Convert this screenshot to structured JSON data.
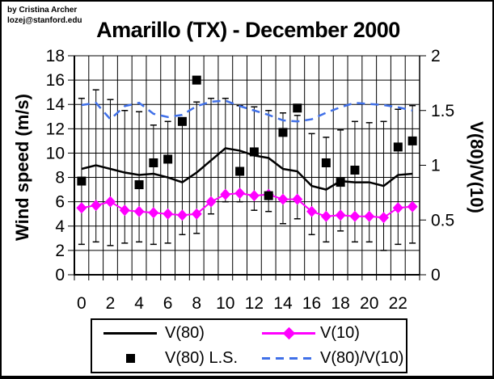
{
  "credit": {
    "line1": "by Cristina Archer",
    "line2": "lozej@stanford.edu"
  },
  "title": "Amarillo (TX) - December 2000",
  "axes": {
    "left": {
      "label": "Wind speed (m/s)",
      "tick_labels": [
        "18",
        "16",
        "14",
        "12",
        "10",
        "8",
        "6",
        "4",
        "2",
        "0"
      ],
      "tick_values": [
        18,
        16,
        14,
        12,
        10,
        8,
        6,
        4,
        2,
        0
      ],
      "range": [
        0,
        18
      ]
    },
    "right": {
      "label": "V(80)/V(10)",
      "tick_labels": [
        "2",
        "1.5",
        "1",
        "0.5",
        "0"
      ],
      "tick_values": [
        2,
        1.5,
        1,
        0.5,
        0
      ],
      "range": [
        0,
        2
      ]
    },
    "x": {
      "tick_labels": [
        "0",
        "2",
        "4",
        "6",
        "8",
        "10",
        "12",
        "14",
        "16",
        "18",
        "20",
        "22"
      ],
      "tick_hours": [
        0,
        2,
        4,
        6,
        8,
        10,
        12,
        14,
        16,
        18,
        20,
        22
      ],
      "categories_count": 24
    }
  },
  "legend": {
    "items": [
      {
        "label": "V(80)"
      },
      {
        "label": "V(10)"
      },
      {
        "label": "V(80) L.S."
      },
      {
        "label": "V(80)/V(10)"
      }
    ]
  },
  "chart_data": {
    "type": "line",
    "title": "Amarillo (TX) - December 2000",
    "x_hours": [
      0,
      1,
      2,
      3,
      4,
      5,
      6,
      7,
      8,
      9,
      10,
      11,
      12,
      13,
      14,
      15,
      16,
      17,
      18,
      19,
      20,
      21,
      22,
      23
    ],
    "ylabel_left": "Wind speed (m/s)",
    "ylim_left": [
      0,
      18
    ],
    "ylabel_right": "V(80)/V(10)",
    "ylim_right": [
      0,
      2
    ],
    "grid": true,
    "legend_position": "bottom",
    "series": [
      {
        "name": "V(80)",
        "style": "solid-line",
        "marker": "none",
        "axis": "left",
        "color": "#000000",
        "values": [
          8.7,
          9.0,
          8.7,
          8.4,
          8.2,
          8.3,
          8.0,
          7.6,
          8.4,
          9.4,
          10.4,
          10.2,
          9.8,
          9.6,
          8.7,
          8.5,
          7.3,
          7.0,
          7.7,
          7.6,
          7.6,
          7.3,
          8.2,
          8.3
        ]
      },
      {
        "name": "V(10)",
        "style": "solid-line",
        "marker": "diamond",
        "axis": "left",
        "color": "#FF00FF",
        "values": [
          5.5,
          5.7,
          6.0,
          5.3,
          5.2,
          5.1,
          5.0,
          4.9,
          5.0,
          6.0,
          6.6,
          6.7,
          6.5,
          6.6,
          6.2,
          6.2,
          5.2,
          4.8,
          4.9,
          4.8,
          4.8,
          4.7,
          5.5,
          5.6
        ]
      },
      {
        "name": "V(80) L.S.",
        "style": "markers-only",
        "marker": "square",
        "axis": "left",
        "color": "#000000",
        "values": [
          7.7,
          null,
          null,
          null,
          7.4,
          9.2,
          9.5,
          12.6,
          16.0,
          null,
          null,
          8.5,
          10.1,
          6.5,
          11.7,
          13.7,
          null,
          9.2,
          7.6,
          8.6,
          null,
          null,
          10.5,
          11.0
        ]
      },
      {
        "name": "V(80)/V(10)",
        "style": "dashed-line",
        "marker": "none",
        "axis": "right",
        "color": "#4070E8",
        "values": [
          1.55,
          1.57,
          1.42,
          1.54,
          1.57,
          1.47,
          1.44,
          1.46,
          1.54,
          1.58,
          1.59,
          1.54,
          1.5,
          1.46,
          1.41,
          1.4,
          1.42,
          1.48,
          1.53,
          1.57,
          1.56,
          1.55,
          1.53,
          1.5
        ]
      }
    ],
    "error_bars": {
      "on_series": "V(80)",
      "upper": [
        14.5,
        15.2,
        14.4,
        13.5,
        13.4,
        12.3,
        12.6,
        12.3,
        14.2,
        14.5,
        14.5,
        13.9,
        13.8,
        13.5,
        13.3,
        13.1,
        11.6,
        11.3,
        11.9,
        12.6,
        12.5,
        12.6,
        13.6,
        13.9
      ],
      "lower": [
        2.5,
        2.7,
        2.4,
        2.6,
        2.7,
        2.5,
        2.6,
        3.3,
        3.4,
        5.0,
        6.0,
        6.0,
        5.3,
        5.2,
        4.2,
        4.6,
        3.3,
        2.7,
        3.6,
        2.7,
        2.7,
        2.0,
        2.5,
        2.6
      ]
    }
  }
}
